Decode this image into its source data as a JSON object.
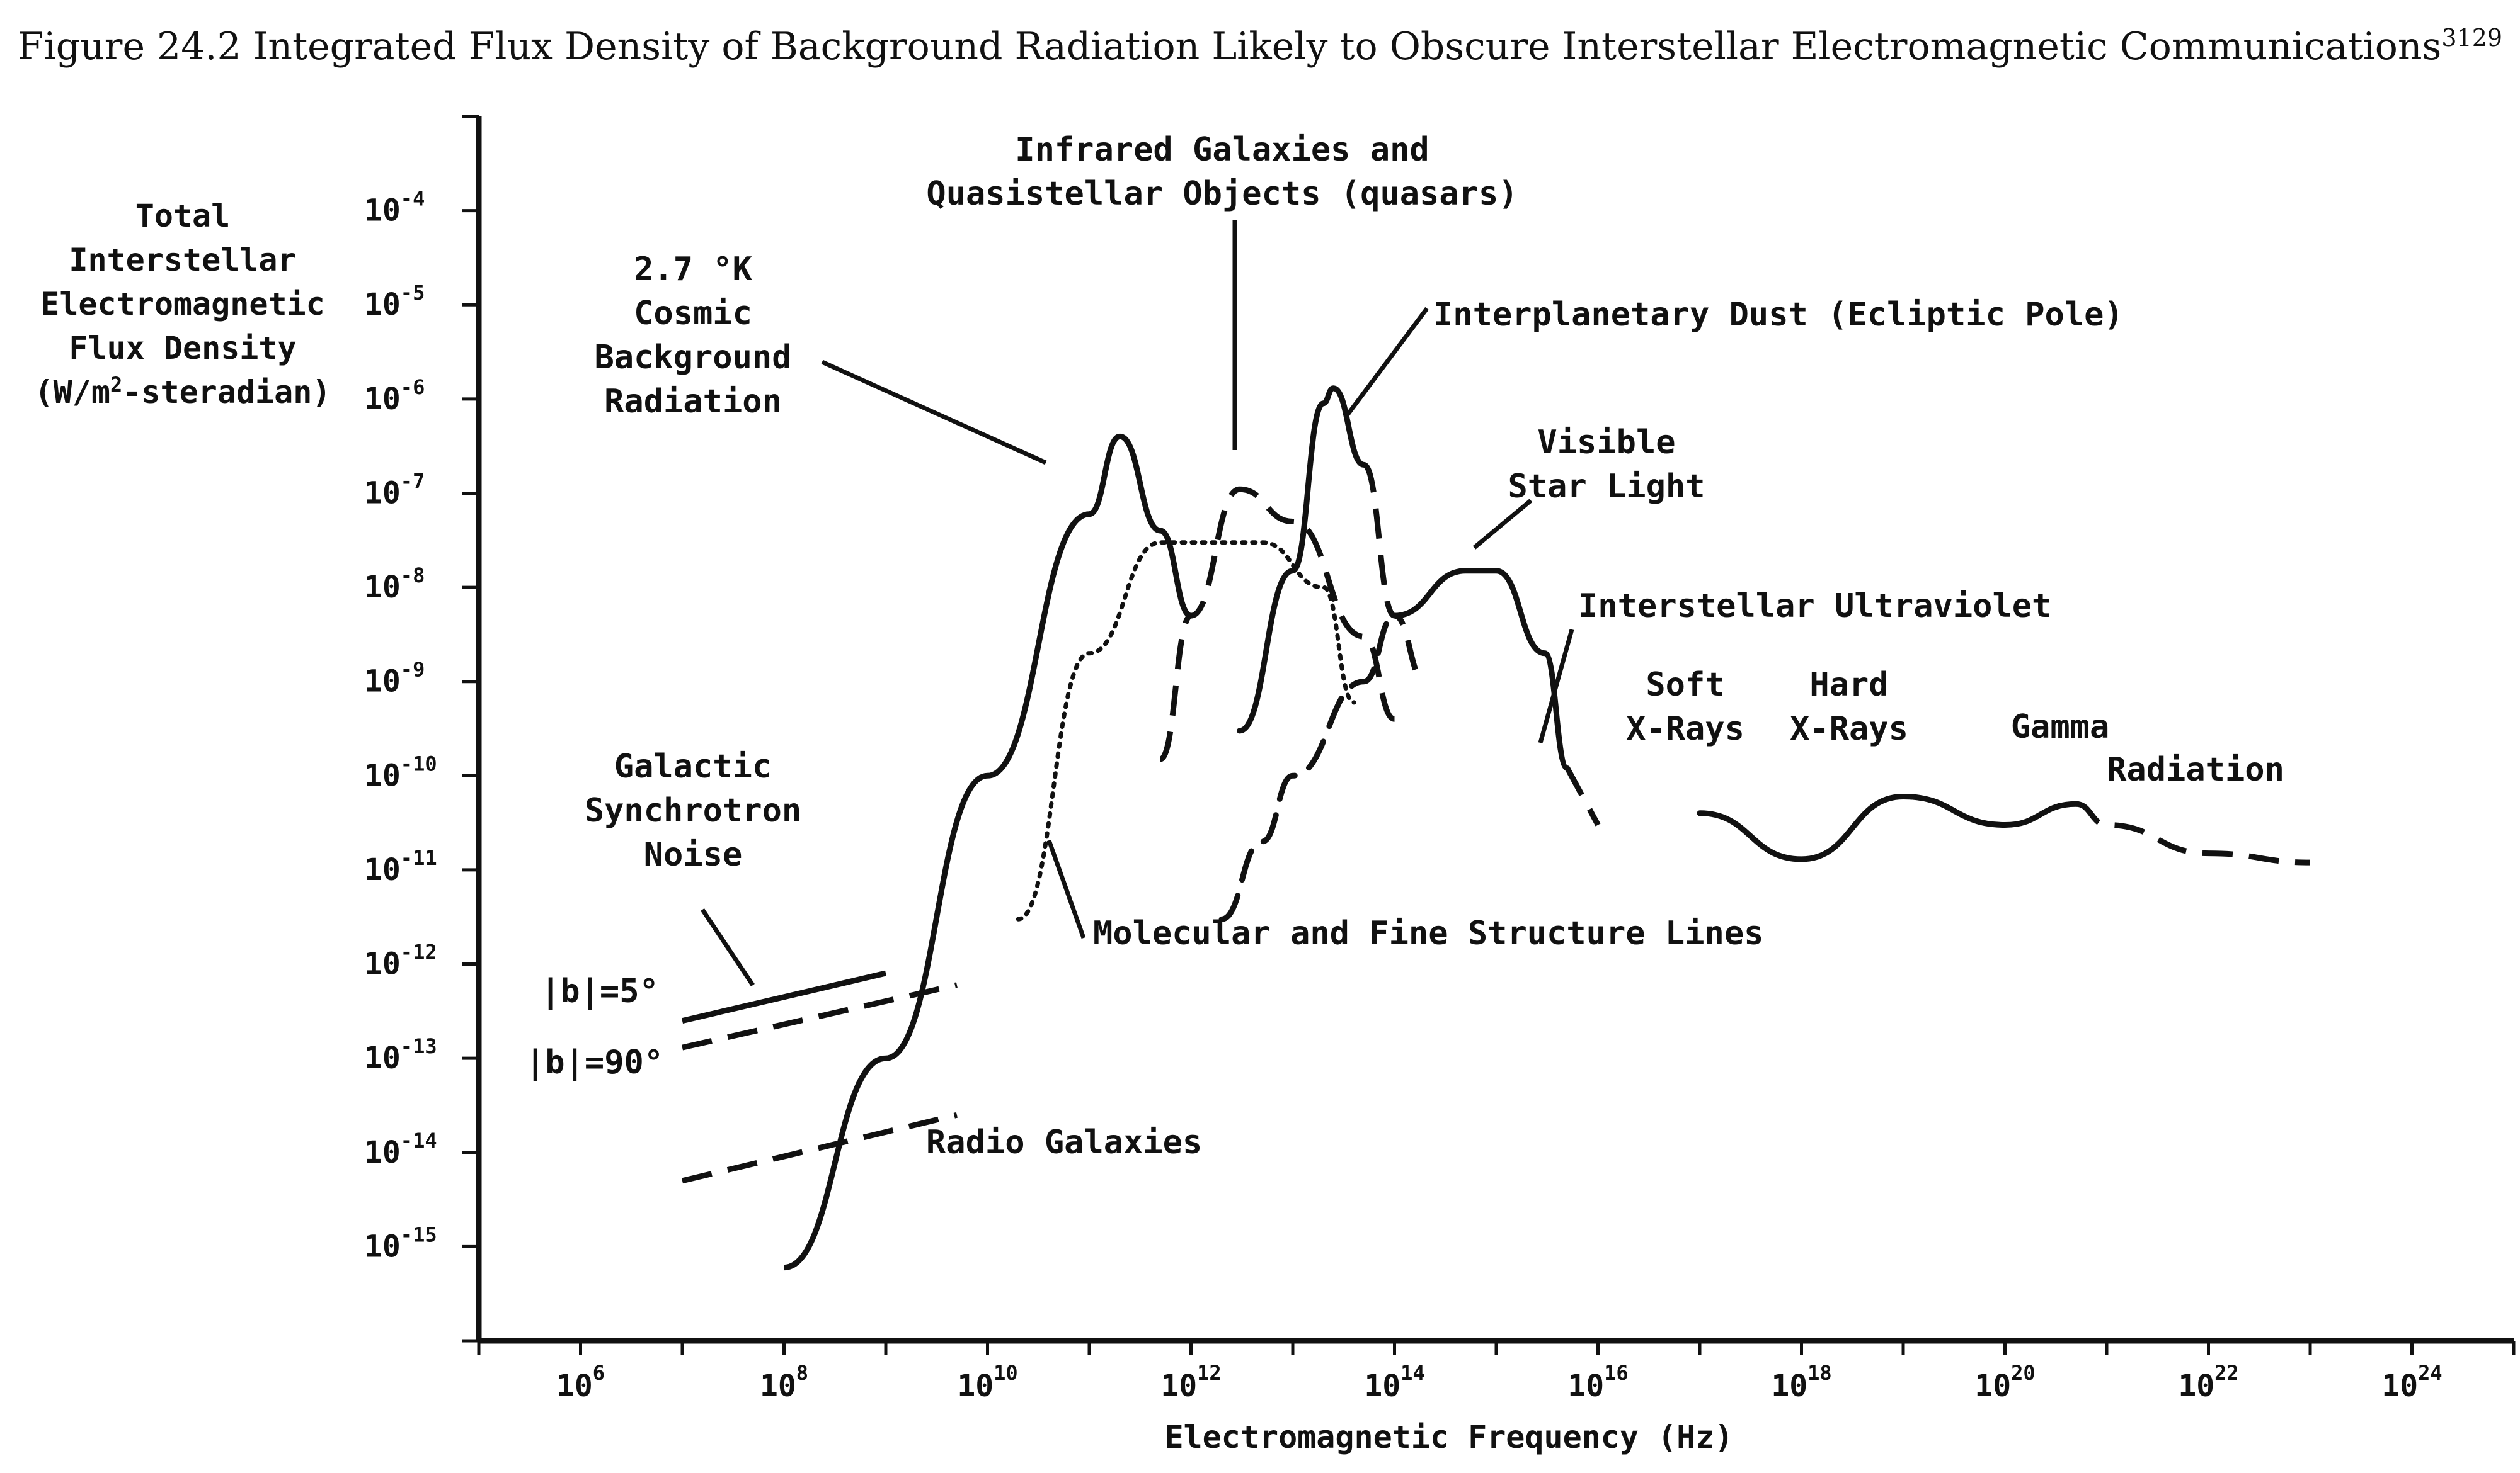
{
  "figure": {
    "title": "Figure 24.2 Integrated Flux Density of Background Radiation Likely to Obscure Interstellar Electromagnetic Communications",
    "footnote": "3129"
  },
  "chart_data": {
    "type": "line",
    "x_scale": "log",
    "y_scale": "log",
    "xlabel": "Electromagnetic Frequency (Hz)",
    "ylabel_lines": [
      "Total",
      "Interstellar",
      "Electromagnetic",
      "Flux Density",
      "(W/m2-steradian)"
    ],
    "xlim": [
      100000,
      1e+25
    ],
    "ylim": [
      1e-16,
      0.001
    ],
    "x_tick_exponents": [
      6,
      8,
      10,
      12,
      14,
      16,
      18,
      20,
      22,
      24
    ],
    "y_tick_exponents": [
      -4,
      -5,
      -6,
      -7,
      -8,
      -9,
      -10,
      -11,
      -12,
      -13,
      -14,
      -15
    ],
    "grid": false,
    "series": [
      {
        "name": "2.7 °K Cosmic Background Radiation",
        "style": "solid",
        "x": [
          100000000.0,
          1000000000.0,
          10000000000.0,
          100000000000.0,
          200000000000.0,
          500000000000.0,
          1000000000000.0
        ],
        "y": [
          6e-16,
          1e-13,
          1e-10,
          6e-08,
          4e-07,
          4e-08,
          5e-09
        ]
      },
      {
        "name": "Galactic Synchrotron Noise |b|=5°",
        "style": "solid",
        "x": [
          10000000.0,
          1000000000.0
        ],
        "y": [
          2.5e-13,
          8e-13
        ]
      },
      {
        "name": "Galactic Synchrotron Noise |b|=90°",
        "style": "dashed",
        "x": [
          10000000.0,
          5000000000.0
        ],
        "y": [
          1.3e-13,
          6e-13
        ]
      },
      {
        "name": "Radio Galaxies",
        "style": "dashed",
        "x": [
          10000000.0,
          5000000000.0
        ],
        "y": [
          5e-15,
          2.5e-14
        ]
      },
      {
        "name": "Molecular and Fine Structure Lines",
        "style": "dotted",
        "x": [
          20000000000.0,
          100000000000.0,
          500000000000.0,
          5000000000000.0,
          20000000000000.0,
          40000000000000.0
        ],
        "y": [
          3e-12,
          2e-09,
          3e-08,
          3e-08,
          1e-08,
          6e-10
        ]
      },
      {
        "name": "Infrared Galaxies and Quasistellar Objects (quasars)",
        "style": "dashed",
        "x": [
          500000000000.0,
          1000000000000.0,
          3000000000000.0,
          10000000000000.0,
          50000000000000.0,
          100000000000000.0
        ],
        "y": [
          1.5e-10,
          5e-09,
          1.1e-07,
          5e-08,
          3e-09,
          4e-10
        ]
      },
      {
        "name": "Interplanetary Dust (Ecliptic Pole)",
        "style": "solid-dashed",
        "x": [
          3000000000000.0,
          10000000000000.0,
          20000000000000.0,
          25000000000000.0,
          50000000000000.0,
          100000000000000.0,
          200000000000000.0
        ],
        "y": [
          3e-10,
          1.5e-08,
          9e-07,
          1.3e-06,
          2e-07,
          5e-09,
          1e-09
        ]
      },
      {
        "name": "Visible Star Light",
        "style": "dashed-solid",
        "x": [
          2000000000000.0,
          5000000000000.0,
          10000000000000.0,
          50000000000000.0,
          100000000000000.0,
          500000000000000.0,
          1000000000000000.0
        ],
        "y": [
          3e-12,
          2e-11,
          1e-10,
          1e-09,
          5e-09,
          1.5e-08,
          1.5e-08
        ]
      },
      {
        "name": "Interstellar Ultraviolet",
        "style": "solid-dashed",
        "x": [
          1000000000000000.0,
          3000000000000000.0,
          5000000000000000.0,
          1e+16
        ],
        "y": [
          1.5e-08,
          2e-09,
          1.2e-10,
          3e-11
        ]
      },
      {
        "name": "Soft X-Rays / Hard X-Rays / Gamma Radiation",
        "style": "solid-dashed",
        "x": [
          1e+17,
          1e+18,
          1e+19,
          1e+20,
          5e+20,
          1e+21,
          1e+22,
          1e+23
        ],
        "y": [
          4e-11,
          1.3e-11,
          6e-11,
          3e-11,
          5e-11,
          3e-11,
          1.5e-11,
          1.2e-11
        ]
      }
    ],
    "annotations": {
      "cosmic": [
        "2.7 °K",
        "Cosmic",
        "Background",
        "Radiation"
      ],
      "infrared": [
        "Infrared Galaxies and",
        "Quasistellar Objects (quasars)"
      ],
      "dust": "Interplanetary Dust (Ecliptic Pole)",
      "visible": [
        "Visible",
        "Star Light"
      ],
      "uv": "Interstellar Ultraviolet",
      "soft": [
        "Soft",
        "X-Rays"
      ],
      "hard": [
        "Hard",
        "X-Rays"
      ],
      "gamma": "Gamma",
      "gamma2": "Radiation",
      "synchrotron": [
        "Galactic",
        "Synchrotron",
        "Noise"
      ],
      "b5": "|b|=5°",
      "b90": "|b|=90°",
      "radio": "Radio Galaxies",
      "molecular": "Molecular and Fine Structure Lines"
    }
  }
}
